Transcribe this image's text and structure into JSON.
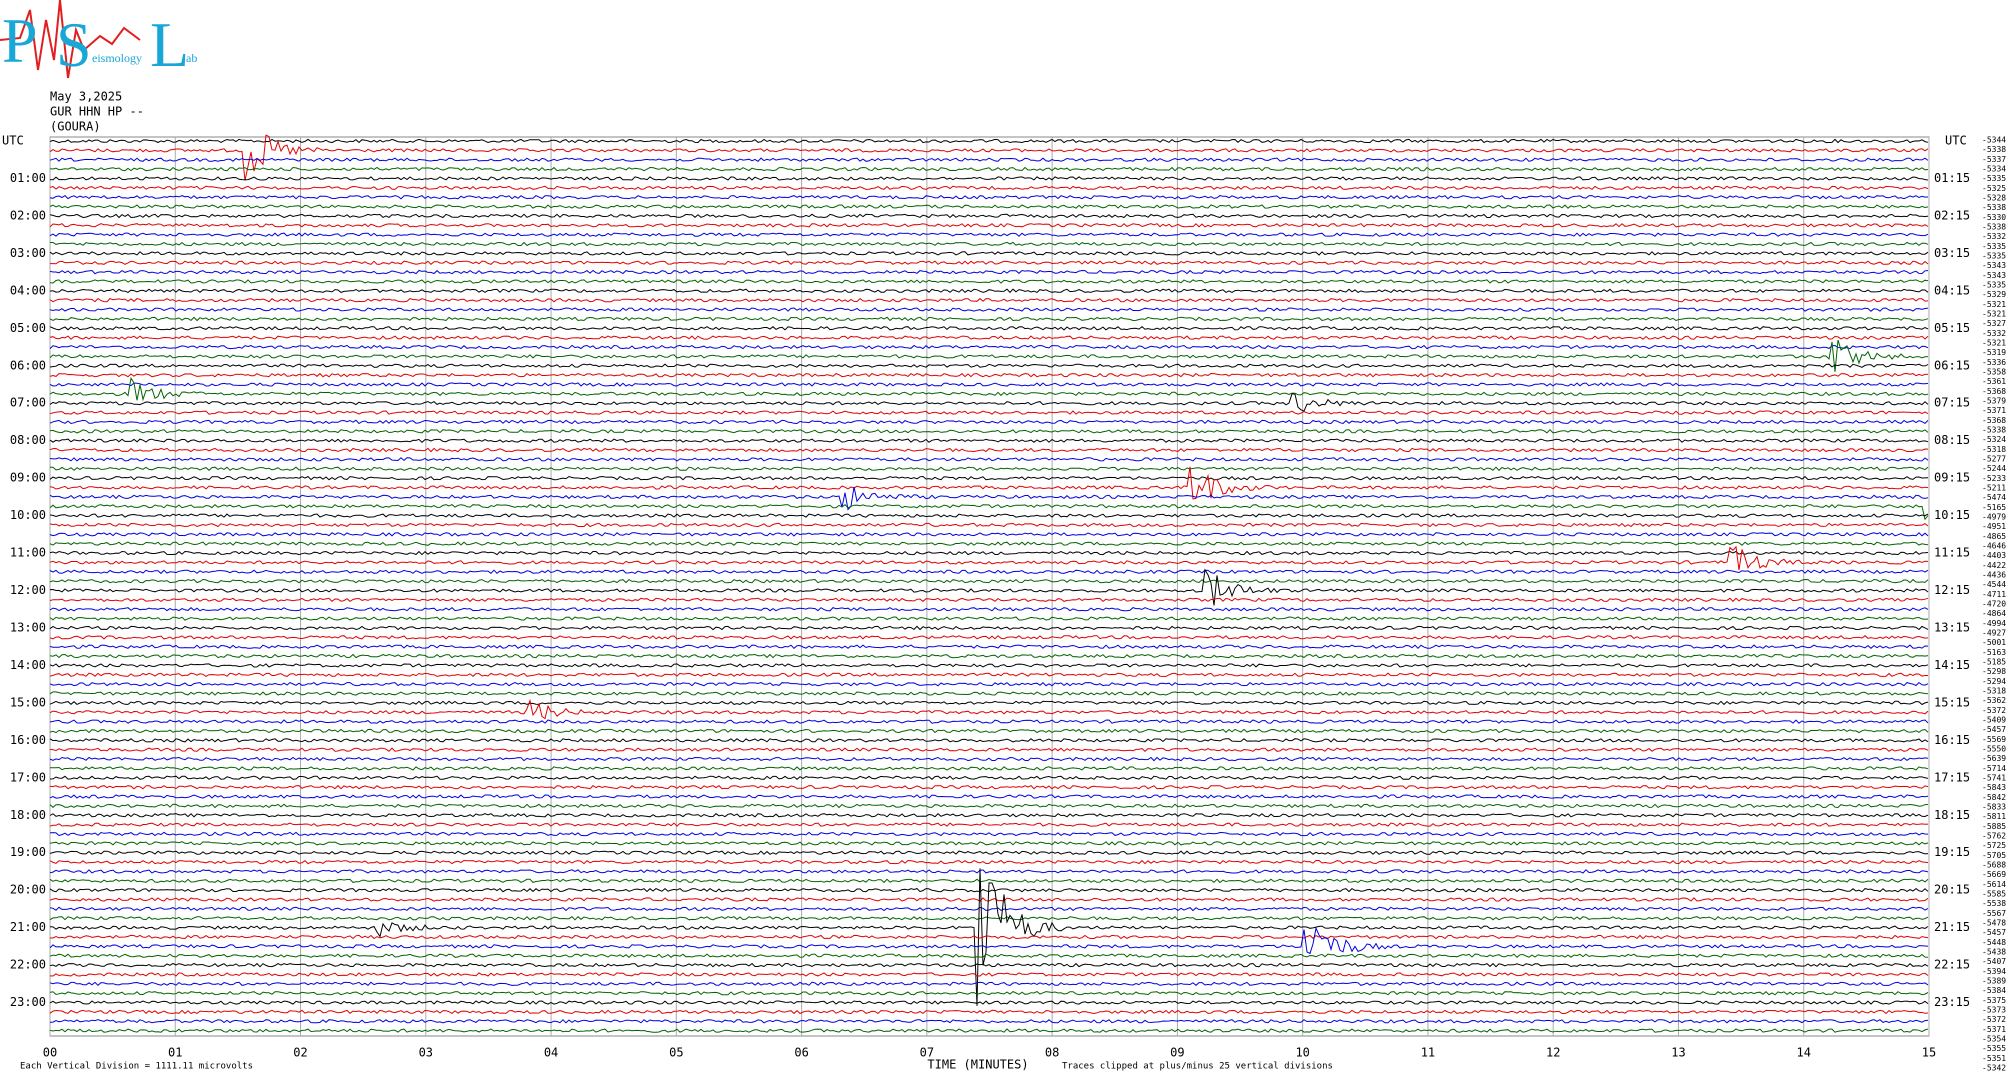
{
  "logo": {
    "letters": [
      "P",
      "S",
      "L"
    ],
    "small": [
      "eismology",
      "ab"
    ]
  },
  "header": {
    "date": "May 3,2025",
    "station": "GUR HHN HP --",
    "site": "(GOURA)"
  },
  "left_axis": {
    "title": "UTC",
    "labels": [
      "01:00",
      "02:00",
      "03:00",
      "04:00",
      "05:00",
      "06:00",
      "07:00",
      "08:00",
      "09:00",
      "10:00",
      "11:00",
      "12:00",
      "13:00",
      "14:00",
      "15:00",
      "16:00",
      "17:00",
      "18:00",
      "19:00",
      "20:00",
      "21:00",
      "22:00",
      "23:00"
    ]
  },
  "right_axis": {
    "title": "UTC",
    "labels": [
      "01:15",
      "02:15",
      "03:15",
      "04:15",
      "05:15",
      "06:15",
      "07:15",
      "08:15",
      "09:15",
      "10:15",
      "11:15",
      "12:15",
      "13:15",
      "14:15",
      "15:15",
      "16:15",
      "17:15",
      "18:15",
      "19:15",
      "20:15",
      "21:15",
      "22:15",
      "23:15"
    ]
  },
  "offsets": [
    "-5344",
    "-5338",
    "-5337",
    "-5334",
    "-5335",
    "-5325",
    "-5328",
    "-5338",
    "-5330",
    "-5338",
    "-5332",
    "-5335",
    "-5335",
    "-5343",
    "-5343",
    "-5335",
    "-5329",
    "-5321",
    "-5321",
    "-5327",
    "-5332",
    "-5321",
    "-5319",
    "-5336",
    "-5358",
    "-5361",
    "-5368",
    "-5379",
    "-5371",
    "-5368",
    "-5338",
    "-5324",
    "-5318",
    "-5277",
    "-5244",
    "-5233",
    "-5211",
    "-5474",
    "-5165",
    "-4979",
    "-4951",
    "-4865",
    "-4646",
    "-4403",
    "-4422",
    "-4436",
    "-4544",
    "-4711",
    "-4720",
    "-4864",
    "-4994",
    "-4927",
    "-5001",
    "-5163",
    "-5185",
    "-5298",
    "-5294",
    "-5318",
    "-5362",
    "-5372",
    "-5409",
    "-5457",
    "-5569",
    "-5550",
    "-5639",
    "-5714",
    "-5741",
    "-5843",
    "-5842",
    "-5833",
    "-5811",
    "-5885",
    "-5762",
    "-5725",
    "-5705",
    "-5688",
    "-5669",
    "-5614",
    "-5585",
    "-5538",
    "-5567",
    "-5478",
    "-5457",
    "-5448",
    "-5438",
    "-5407",
    "-5394",
    "-5389",
    "-5384",
    "-5375",
    "-5373",
    "-5372",
    "-5371",
    "-5354",
    "-5355",
    "-5351",
    "-5342"
  ],
  "x_axis": {
    "labels": [
      "00",
      "01",
      "02",
      "03",
      "04",
      "05",
      "06",
      "07",
      "08",
      "09",
      "10",
      "11",
      "12",
      "13",
      "14",
      "15"
    ],
    "title": "TIME (MINUTES)"
  },
  "footer": {
    "scale": "Each Vertical Division = 1111.11 microvolts",
    "clip": "Traces clipped at plus/minus 25 vertical divisions"
  }
}
